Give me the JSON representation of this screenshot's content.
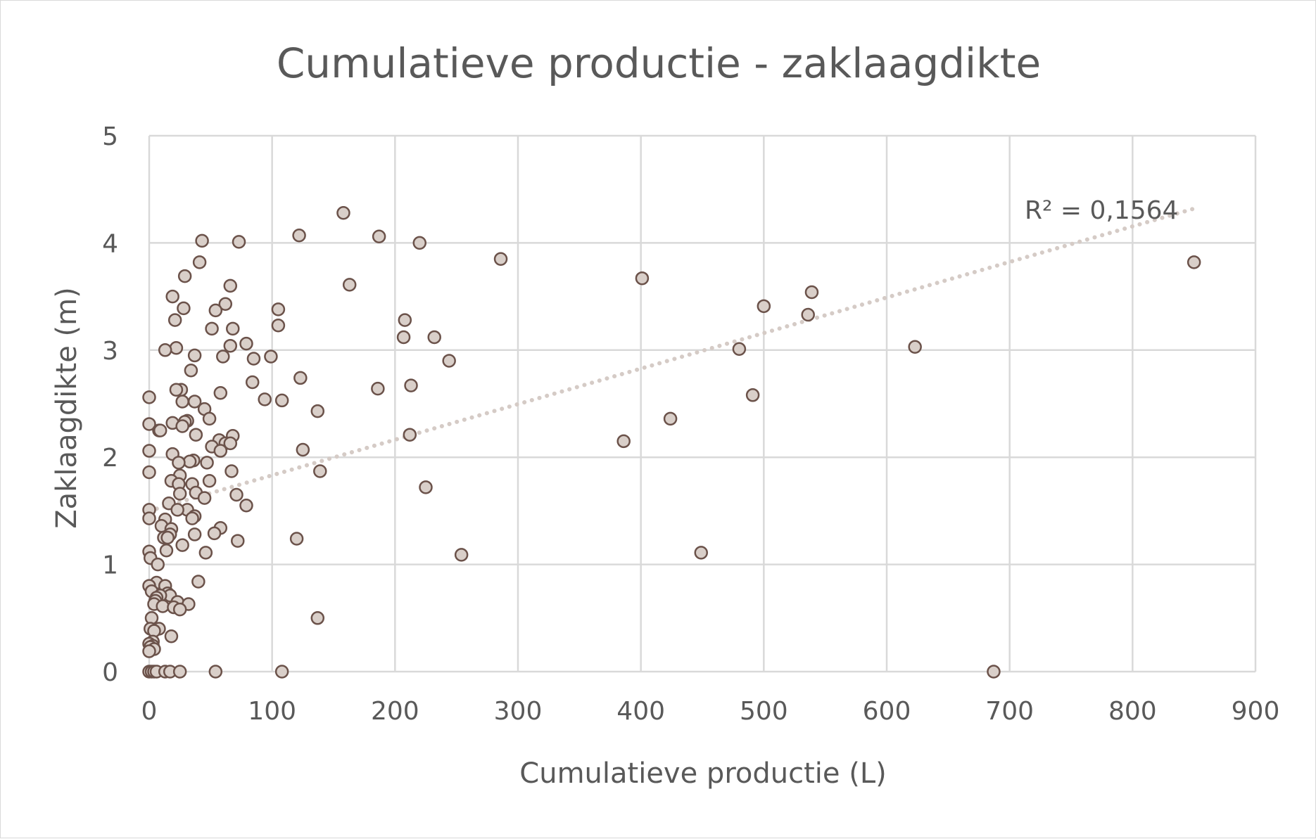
{
  "chart_data": {
    "type": "scatter",
    "title": "Cumulatieve productie - zaklaagdikte",
    "xlabel": "Cumulatieve productie (L)",
    "ylabel": "Zaklaagdikte (m)",
    "xlim": [
      0,
      900
    ],
    "ylim": [
      0,
      5
    ],
    "xticks": [
      0,
      100,
      200,
      300,
      400,
      500,
      600,
      700,
      800,
      900
    ],
    "yticks": [
      0,
      1,
      2,
      3,
      4,
      5
    ],
    "xtick_labels": [
      "0",
      "100",
      "200",
      "300",
      "400",
      "500",
      "600",
      "700",
      "800",
      "900"
    ],
    "ytick_labels": [
      "0",
      "1",
      "2",
      "3",
      "4",
      "5"
    ],
    "grid": true,
    "legend": "none",
    "colors": {
      "marker_fill": "#d9cfc9",
      "marker_stroke": "#6b524a",
      "trendline": "#d5cbc6",
      "grid": "#d9d9d9",
      "text": "#595959"
    },
    "trendline": {
      "type": "linear",
      "style": "dotted",
      "x": [
        0,
        850
      ],
      "y": [
        1.5,
        4.32
      ],
      "r2_label": "R² = 0,1564"
    },
    "points": [
      [
        158,
        4.28
      ],
      [
        122,
        4.07
      ],
      [
        187,
        4.06
      ],
      [
        220,
        4.0
      ],
      [
        43,
        4.02
      ],
      [
        73,
        4.01
      ],
      [
        286,
        3.85
      ],
      [
        850,
        3.82
      ],
      [
        41,
        3.82
      ],
      [
        29,
        3.69
      ],
      [
        401,
        3.67
      ],
      [
        163,
        3.61
      ],
      [
        66,
        3.6
      ],
      [
        539,
        3.54
      ],
      [
        19,
        3.5
      ],
      [
        62,
        3.43
      ],
      [
        500,
        3.41
      ],
      [
        28,
        3.39
      ],
      [
        105,
        3.38
      ],
      [
        54,
        3.37
      ],
      [
        536,
        3.33
      ],
      [
        21,
        3.28
      ],
      [
        208,
        3.28
      ],
      [
        105,
        3.23
      ],
      [
        68,
        3.2
      ],
      [
        51,
        3.2
      ],
      [
        207,
        3.12
      ],
      [
        232,
        3.12
      ],
      [
        79,
        3.06
      ],
      [
        66,
        3.04
      ],
      [
        623,
        3.03
      ],
      [
        22,
        3.02
      ],
      [
        480,
        3.01
      ],
      [
        13,
        3.0
      ],
      [
        37,
        2.95
      ],
      [
        60,
        2.94
      ],
      [
        99,
        2.94
      ],
      [
        85,
        2.92
      ],
      [
        244,
        2.9
      ],
      [
        34,
        2.81
      ],
      [
        84,
        2.7
      ],
      [
        123,
        2.74
      ],
      [
        213,
        2.67
      ],
      [
        186,
        2.64
      ],
      [
        26,
        2.63
      ],
      [
        22,
        2.63
      ],
      [
        58,
        2.6
      ],
      [
        491,
        2.58
      ],
      [
        0,
        2.56
      ],
      [
        94,
        2.54
      ],
      [
        108,
        2.53
      ],
      [
        37,
        2.52
      ],
      [
        27,
        2.52
      ],
      [
        45,
        2.45
      ],
      [
        137,
        2.43
      ],
      [
        424,
        2.36
      ],
      [
        49,
        2.36
      ],
      [
        31,
        2.34
      ],
      [
        29,
        2.33
      ],
      [
        19,
        2.32
      ],
      [
        0,
        2.31
      ],
      [
        27,
        2.29
      ],
      [
        8,
        2.25
      ],
      [
        9,
        2.25
      ],
      [
        212,
        2.21
      ],
      [
        38,
        2.21
      ],
      [
        68,
        2.2
      ],
      [
        57,
        2.16
      ],
      [
        386,
        2.15
      ],
      [
        62,
        2.13
      ],
      [
        66,
        2.13
      ],
      [
        51,
        2.1
      ],
      [
        125,
        2.07
      ],
      [
        0,
        2.06
      ],
      [
        58,
        2.06
      ],
      [
        19,
        2.03
      ],
      [
        36,
        1.97
      ],
      [
        33,
        1.96
      ],
      [
        47,
        1.95
      ],
      [
        24,
        1.95
      ],
      [
        139,
        1.87
      ],
      [
        67,
        1.87
      ],
      [
        0,
        1.86
      ],
      [
        25,
        1.83
      ],
      [
        18,
        1.78
      ],
      [
        49,
        1.78
      ],
      [
        24,
        1.75
      ],
      [
        35,
        1.75
      ],
      [
        225,
        1.72
      ],
      [
        38,
        1.67
      ],
      [
        25,
        1.66
      ],
      [
        71,
        1.65
      ],
      [
        45,
        1.62
      ],
      [
        16,
        1.57
      ],
      [
        79,
        1.55
      ],
      [
        0,
        1.51
      ],
      [
        31,
        1.51
      ],
      [
        23,
        1.51
      ],
      [
        37,
        1.45
      ],
      [
        0,
        1.43
      ],
      [
        35,
        1.43
      ],
      [
        13,
        1.42
      ],
      [
        10,
        1.36
      ],
      [
        18,
        1.33
      ],
      [
        58,
        1.34
      ],
      [
        53,
        1.29
      ],
      [
        37,
        1.28
      ],
      [
        17,
        1.28
      ],
      [
        12,
        1.25
      ],
      [
        15,
        1.25
      ],
      [
        72,
        1.22
      ],
      [
        120,
        1.24
      ],
      [
        27,
        1.18
      ],
      [
        14,
        1.13
      ],
      [
        0,
        1.12
      ],
      [
        46,
        1.11
      ],
      [
        449,
        1.11
      ],
      [
        254,
        1.09
      ],
      [
        1,
        1.06
      ],
      [
        7,
        1.0
      ],
      [
        40,
        0.84
      ],
      [
        6,
        0.83
      ],
      [
        0,
        0.8
      ],
      [
        13,
        0.8
      ],
      [
        2,
        0.75
      ],
      [
        15,
        0.73
      ],
      [
        17,
        0.71
      ],
      [
        9,
        0.71
      ],
      [
        6,
        0.69
      ],
      [
        5,
        0.66
      ],
      [
        23,
        0.65
      ],
      [
        32,
        0.63
      ],
      [
        4,
        0.63
      ],
      [
        11,
        0.61
      ],
      [
        20,
        0.6
      ],
      [
        25,
        0.58
      ],
      [
        2,
        0.5
      ],
      [
        137,
        0.5
      ],
      [
        8,
        0.4
      ],
      [
        1,
        0.4
      ],
      [
        4,
        0.38
      ],
      [
        18,
        0.33
      ],
      [
        3,
        0.28
      ],
      [
        0,
        0.26
      ],
      [
        3,
        0.24
      ],
      [
        1,
        0.23
      ],
      [
        4,
        0.21
      ],
      [
        0,
        0.19
      ],
      [
        0,
        0.0
      ],
      [
        2,
        0.0
      ],
      [
        4,
        0.0
      ],
      [
        6,
        0.0
      ],
      [
        13,
        0.0
      ],
      [
        17,
        0.0
      ],
      [
        25,
        0.0
      ],
      [
        54,
        0.0
      ],
      [
        108,
        0.0
      ],
      [
        687,
        0.0
      ]
    ]
  }
}
